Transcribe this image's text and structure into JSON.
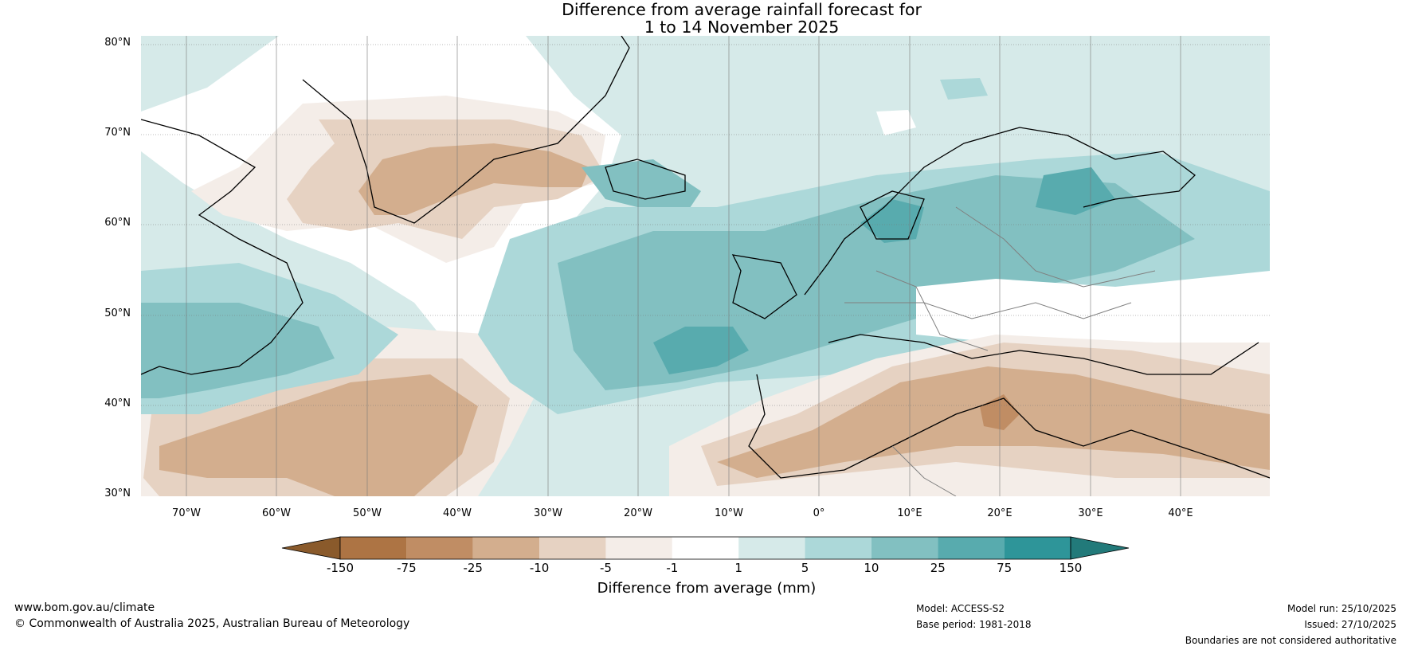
{
  "title_line1": "Difference from average rainfall forecast for",
  "title_line2": "1 to 14 November 2025",
  "lat_labels": [
    "80°N",
    "70°N",
    "60°N",
    "50°N",
    "40°N",
    "30°N"
  ],
  "lon_labels": [
    "70°W",
    "60°W",
    "50°W",
    "40°W",
    "30°W",
    "20°W",
    "10°W",
    "0°",
    "10°E",
    "20°E",
    "30°E",
    "40°E"
  ],
  "colorbar": {
    "ticks": [
      "-150",
      "-75",
      "-25",
      "-10",
      "-5",
      "-1",
      "1",
      "5",
      "10",
      "25",
      "75",
      "150"
    ],
    "colors": [
      "#8a5a2b",
      "#ad7444",
      "#c08d64",
      "#d3ae8e",
      "#e6d2c2",
      "#f4ede8",
      "#ffffff",
      "#d6eae9",
      "#acd8d9",
      "#82c0c1",
      "#58abae",
      "#2e9599",
      "#227a7a"
    ],
    "label": "Difference from average (mm)"
  },
  "footer": {
    "url": "www.bom.gov.au/climate",
    "copyright": "© Commonwealth of Australia 2025, Australian Bureau of Meteorology",
    "model": "Model: ACCESS-S2",
    "base_period": "Base period: 1981-2018",
    "model_run": "Model run: 25/10/2025",
    "issued": "Issued: 27/10/2025",
    "disclaimer": "Boundaries are not considered authoritative"
  }
}
